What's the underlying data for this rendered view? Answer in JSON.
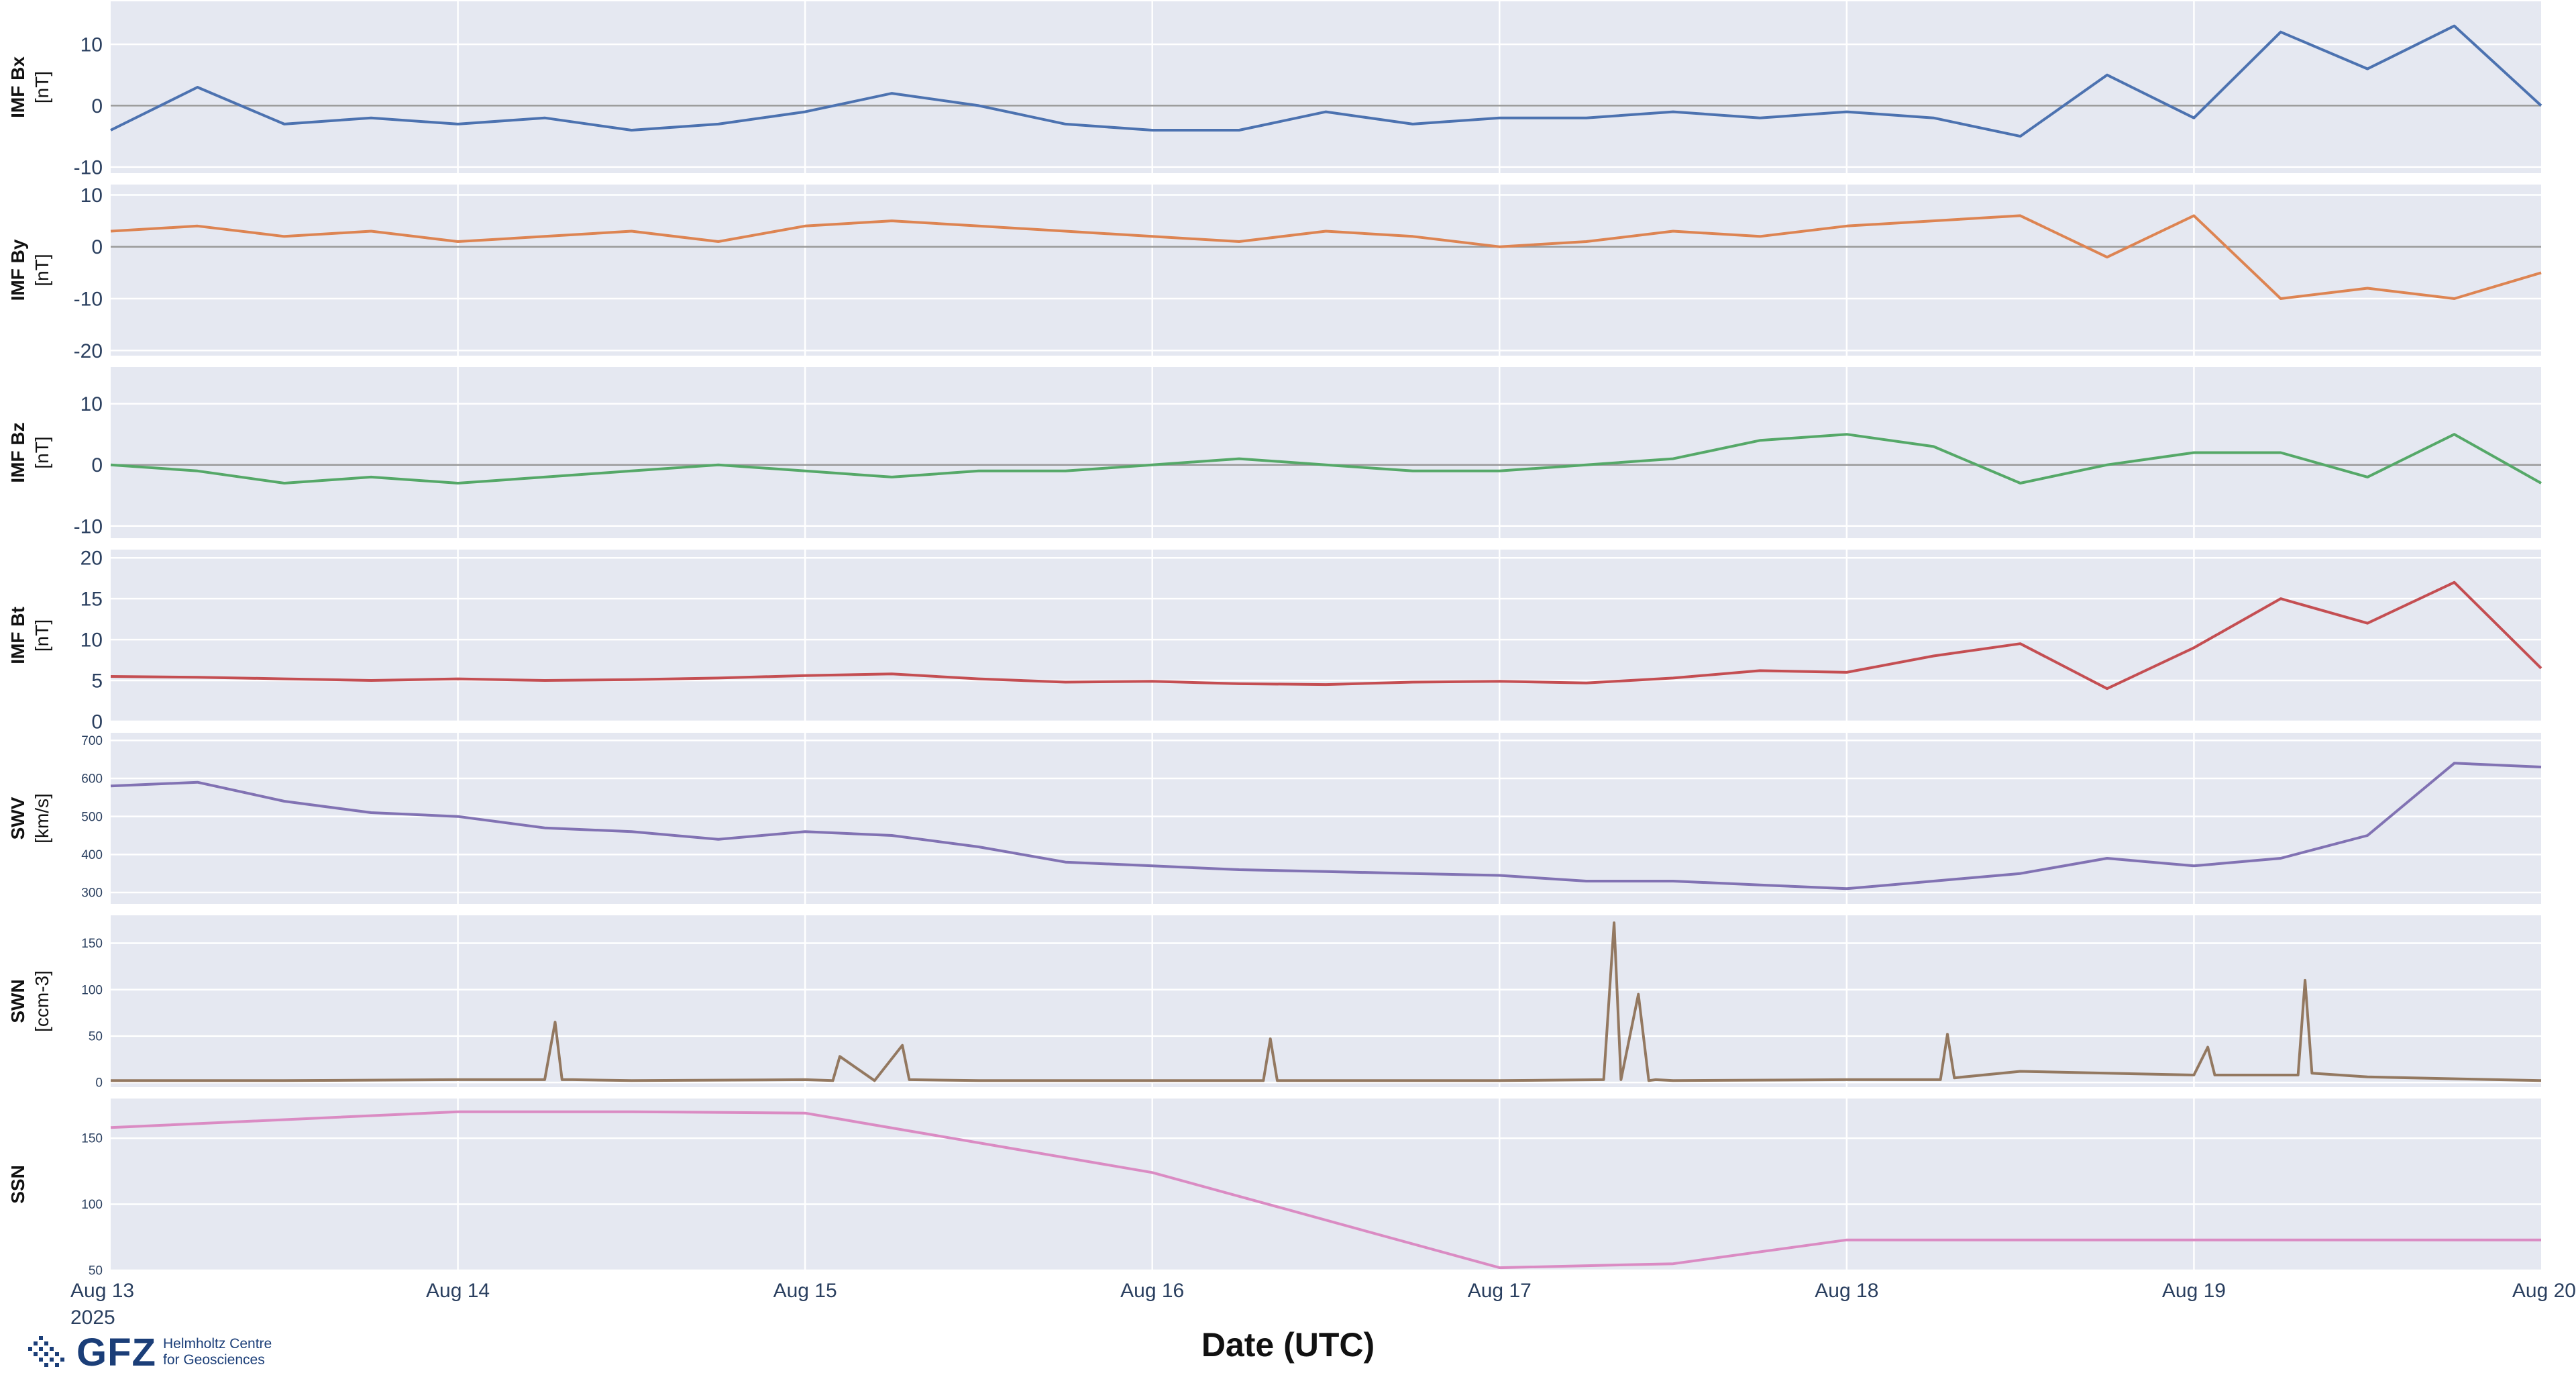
{
  "figure": {
    "x_axis_title": "Date (UTC)",
    "x_ticks": [
      "Aug 13",
      "Aug 14",
      "Aug 15",
      "Aug 16",
      "Aug 17",
      "Aug 18",
      "Aug 19",
      "Aug 20"
    ],
    "x_tick_year": "2025"
  },
  "logo": {
    "mark": "GFZ",
    "line1": "Helmholtz Centre",
    "line2": "for Geosciences"
  },
  "chart_data": [
    {
      "type": "line",
      "label": "IMF Bx",
      "unit": "[nT]",
      "color": "#4c72b0",
      "ylim": [
        -11,
        17
      ],
      "yticks": [
        -10,
        0,
        10
      ],
      "zero_line": true,
      "x_days": [
        0,
        0.25,
        0.5,
        0.75,
        1,
        1.25,
        1.5,
        1.75,
        2,
        2.25,
        2.5,
        2.75,
        3,
        3.25,
        3.5,
        3.75,
        4,
        4.25,
        4.5,
        4.75,
        5,
        5.25,
        5.5,
        5.75,
        6,
        6.25,
        6.5,
        6.75,
        7
      ],
      "values": [
        -4,
        3,
        -3,
        -2,
        -3,
        -2,
        -4,
        -3,
        -1,
        2,
        0,
        -3,
        -4,
        -4,
        -1,
        -3,
        -2,
        -2,
        -1,
        -2,
        -1,
        -2,
        -5,
        5,
        -2,
        12,
        6,
        13,
        0
      ]
    },
    {
      "type": "line",
      "label": "IMF By",
      "unit": "[nT]",
      "color": "#dd8452",
      "ylim": [
        -21,
        12
      ],
      "yticks": [
        -20,
        -10,
        0,
        10
      ],
      "zero_line": true,
      "x_days": [
        0,
        0.25,
        0.5,
        0.75,
        1,
        1.25,
        1.5,
        1.75,
        2,
        2.25,
        2.5,
        2.75,
        3,
        3.25,
        3.5,
        3.75,
        4,
        4.25,
        4.5,
        4.75,
        5,
        5.25,
        5.5,
        5.75,
        6,
        6.25,
        6.5,
        6.75,
        7
      ],
      "values": [
        3,
        4,
        2,
        3,
        1,
        2,
        3,
        1,
        4,
        5,
        4,
        3,
        2,
        1,
        3,
        2,
        0,
        1,
        3,
        2,
        4,
        5,
        6,
        -2,
        6,
        -10,
        -8,
        -10,
        -5
      ]
    },
    {
      "type": "line",
      "label": "IMF Bz",
      "unit": "[nT]",
      "color": "#55a868",
      "ylim": [
        -12,
        16
      ],
      "yticks": [
        -10,
        0,
        10
      ],
      "zero_line": true,
      "x_days": [
        0,
        0.25,
        0.5,
        0.75,
        1,
        1.25,
        1.5,
        1.75,
        2,
        2.25,
        2.5,
        2.75,
        3,
        3.25,
        3.5,
        3.75,
        4,
        4.25,
        4.5,
        4.75,
        5,
        5.25,
        5.5,
        5.75,
        6,
        6.25,
        6.5,
        6.75,
        7
      ],
      "values": [
        0,
        -1,
        -3,
        -2,
        -3,
        -2,
        -1,
        0,
        -1,
        -2,
        -1,
        -1,
        0,
        1,
        0,
        -1,
        -1,
        0,
        1,
        4,
        5,
        3,
        -3,
        0,
        2,
        2,
        -2,
        5,
        -3
      ]
    },
    {
      "type": "line",
      "label": "IMF Bt",
      "unit": "[nT]",
      "color": "#c44e52",
      "ylim": [
        0,
        21
      ],
      "yticks": [
        0,
        5,
        10,
        15,
        20
      ],
      "zero_line": false,
      "x_days": [
        0,
        0.25,
        0.5,
        0.75,
        1,
        1.25,
        1.5,
        1.75,
        2,
        2.25,
        2.5,
        2.75,
        3,
        3.25,
        3.5,
        3.75,
        4,
        4.25,
        4.5,
        4.75,
        5,
        5.25,
        5.5,
        5.75,
        6,
        6.25,
        6.5,
        6.75,
        7
      ],
      "values": [
        5.5,
        5.4,
        5.2,
        5.0,
        5.2,
        5.0,
        5.1,
        5.3,
        5.6,
        5.8,
        5.2,
        4.8,
        4.9,
        4.6,
        4.5,
        4.8,
        4.9,
        4.7,
        5.3,
        6.2,
        6.0,
        8.0,
        9.5,
        4.0,
        9.0,
        15.0,
        12.0,
        17.0,
        6.5
      ]
    },
    {
      "type": "line",
      "label": "SWV",
      "unit": "[km/s]",
      "color": "#8172b3",
      "ylim": [
        270,
        720
      ],
      "yticks": [
        300,
        400,
        500,
        600,
        700
      ],
      "zero_line": false,
      "x_days": [
        0,
        0.25,
        0.5,
        0.75,
        1,
        1.25,
        1.5,
        1.75,
        2,
        2.25,
        2.5,
        2.75,
        3,
        3.25,
        3.5,
        3.75,
        4,
        4.25,
        4.5,
        4.75,
        5,
        5.25,
        5.5,
        5.75,
        6,
        6.25,
        6.5,
        6.75,
        7
      ],
      "values": [
        580,
        590,
        540,
        510,
        500,
        470,
        460,
        440,
        460,
        450,
        420,
        380,
        370,
        360,
        355,
        350,
        345,
        330,
        330,
        320,
        310,
        330,
        350,
        390,
        370,
        390,
        450,
        640,
        630
      ]
    },
    {
      "type": "line",
      "label": "SWN",
      "unit": "[ccm-3]",
      "color": "#937860",
      "ylim": [
        -5,
        180
      ],
      "yticks": [
        0,
        50,
        100,
        150
      ],
      "zero_line": false,
      "x_days": [
        0,
        0.5,
        1,
        1.25,
        1.28,
        1.3,
        1.33,
        1.5,
        2,
        2.08,
        2.1,
        2.2,
        2.28,
        2.3,
        2.5,
        3,
        3.32,
        3.34,
        3.36,
        3.5,
        4,
        4.3,
        4.33,
        4.35,
        4.4,
        4.43,
        4.45,
        4.5,
        5,
        5.27,
        5.29,
        5.31,
        5.5,
        6,
        6.04,
        6.06,
        6.3,
        6.32,
        6.34,
        6.5,
        7
      ],
      "values": [
        2,
        2,
        3,
        3,
        65,
        3,
        3,
        2,
        3,
        2,
        28,
        2,
        40,
        3,
        2,
        2,
        2,
        47,
        2,
        2,
        2,
        3,
        172,
        3,
        95,
        2,
        3,
        2,
        3,
        3,
        52,
        5,
        12,
        8,
        38,
        8,
        8,
        110,
        10,
        6,
        2
      ]
    },
    {
      "type": "line",
      "label": "SSN",
      "unit": "",
      "color": "#da8bc3",
      "ylim": [
        50,
        180
      ],
      "yticks": [
        50,
        100,
        150
      ],
      "zero_line": false,
      "x_days": [
        0,
        1,
        1.5,
        2,
        3,
        4,
        4.5,
        5,
        6,
        7
      ],
      "values": [
        158,
        170,
        170,
        169,
        124,
        52,
        55,
        73,
        73,
        73
      ]
    }
  ]
}
